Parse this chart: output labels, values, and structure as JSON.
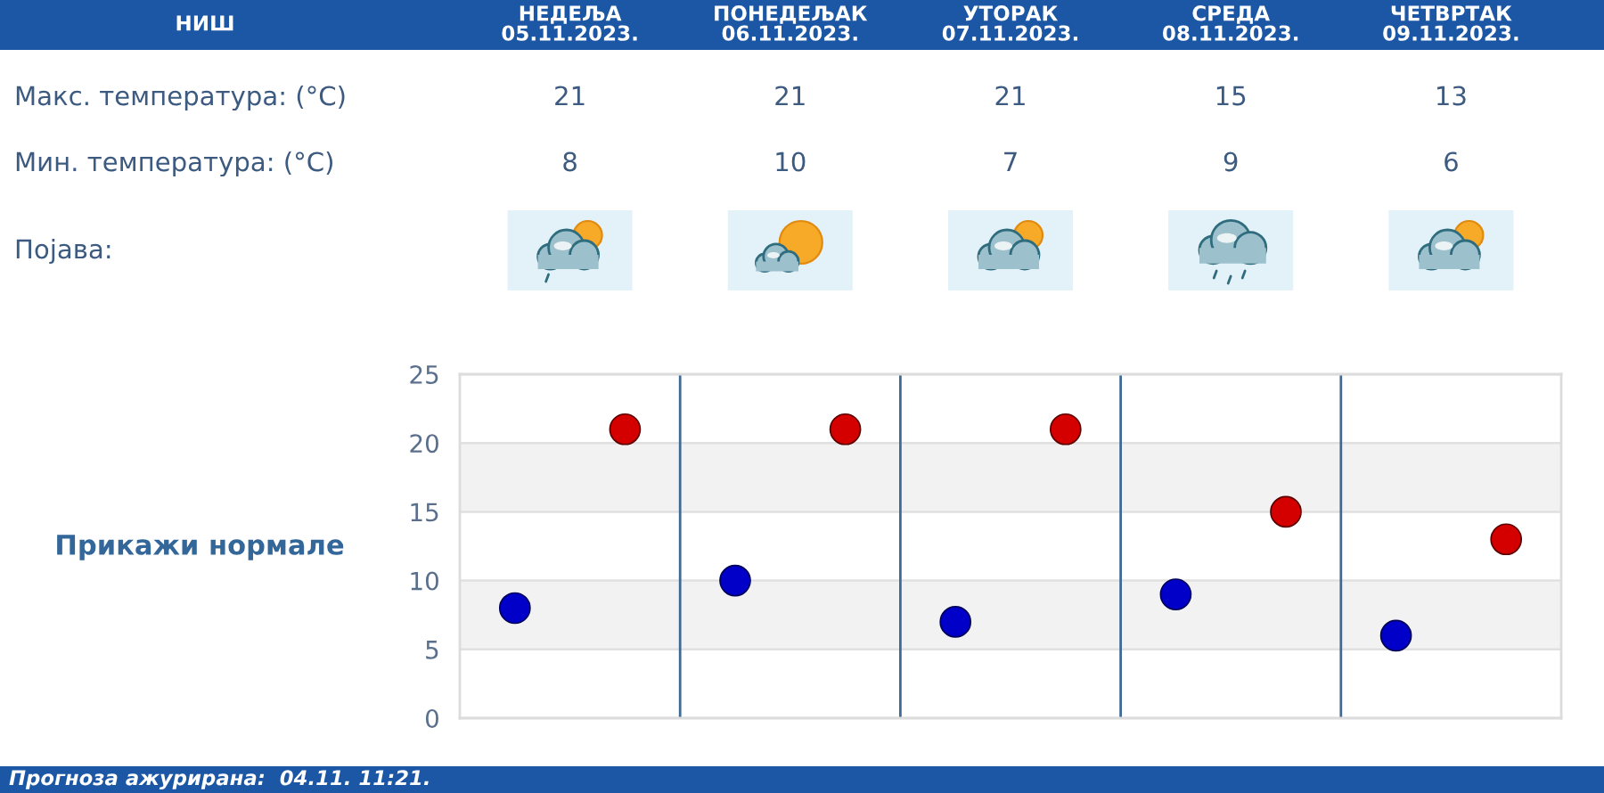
{
  "chart_data": {
    "type": "scatter",
    "categories": [
      null,
      null,
      null,
      null,
      null
    ],
    "series": [
      {
        "color": "#d40000",
        "values": [
          21,
          21,
          21,
          15,
          13
        ]
      },
      {
        "color": "#0000c8",
        "values": [
          8,
          10,
          7,
          9,
          6
        ]
      }
    ],
    "data_labels": true,
    "ylim": [
      0,
      25
    ],
    "yticks": [
      0,
      5,
      10,
      15,
      20,
      25
    ],
    "grid": true,
    "marker": "circle",
    "bands": [
      {
        "axis": "y",
        "from": 5,
        "to": 10,
        "color": "#f2f2f2"
      },
      {
        "axis": "y",
        "from": 15,
        "to": 20,
        "color": "#f2f2f2"
      }
    ],
    "annotations": [
      "НИШ",
      "НЕДЕЉА\n05.11.2023.",
      "ПОНЕДЕЉАК\n06.11.2023.",
      "УТОРАК\n07.11.2023.",
      "СРЕДА\n08.11.2023.",
      "ЧЕТВРТАК\n09.11.2023.",
      "Макс. температура: (°C)",
      "Мин. температура: (°C)",
      "Појава:",
      "Прикажи нормале",
      "Прогноза ажурирана:  04.11. 11:21."
    ]
  }
}
